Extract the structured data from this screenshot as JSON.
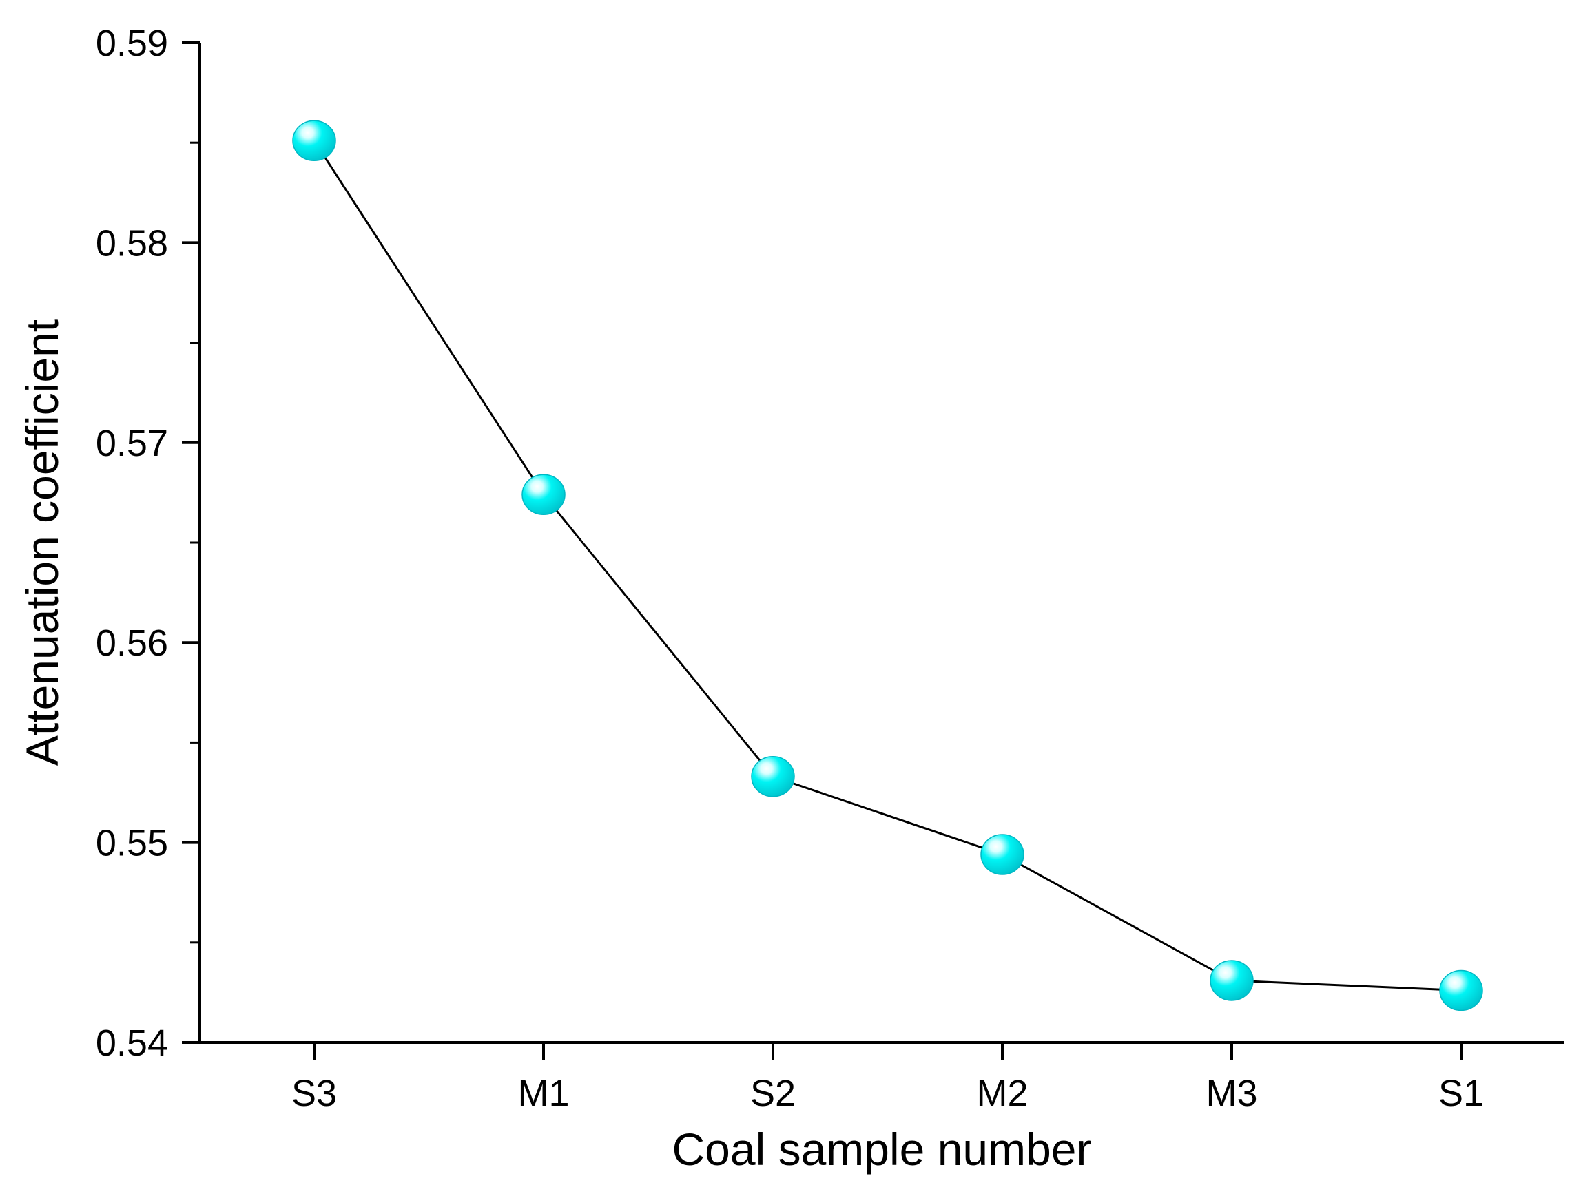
{
  "chart_data": {
    "type": "line",
    "title": "",
    "xlabel": "Coal sample number",
    "ylabel": "Attenuation coefficient",
    "categories": [
      "S3",
      "M1",
      "S2",
      "M2",
      "M3",
      "S1"
    ],
    "series": [
      {
        "name": "Attenuation coefficient",
        "values": [
          0.5851,
          0.5674,
          0.5533,
          0.5494,
          0.5431,
          0.5426
        ]
      }
    ],
    "ylim": [
      0.54,
      0.59
    ],
    "yticks": [
      0.54,
      0.55,
      0.56,
      0.57,
      0.58,
      0.59
    ],
    "ytick_labels": [
      "0.54",
      "0.55",
      "0.56",
      "0.57",
      "0.58",
      "0.59"
    ],
    "grid": false,
    "legend": "none",
    "colors": {
      "line": "#000000",
      "marker": "#00f0f0",
      "marker_edge": "#00b8c4"
    }
  }
}
